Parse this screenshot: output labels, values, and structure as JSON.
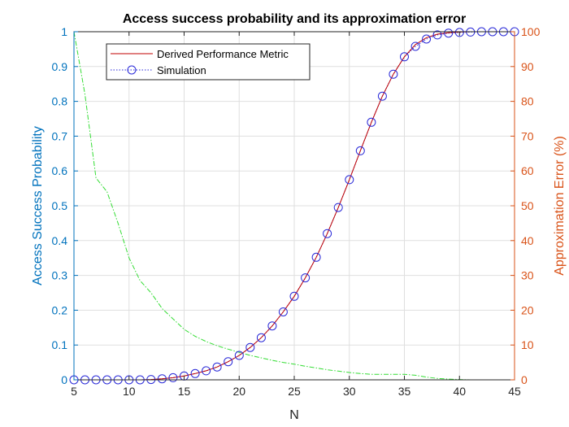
{
  "chart_data": {
    "type": "line",
    "title": "Access success probability and its approximation error",
    "xlabel": "N",
    "ylabel_left": "Access Success Probability",
    "ylabel_right": "Approximation Error (%)",
    "xlim": [
      5,
      45
    ],
    "ylim_left": [
      0,
      1
    ],
    "ylim_right": [
      0,
      100
    ],
    "x_ticks": [
      5,
      10,
      15,
      20,
      25,
      30,
      35,
      40,
      45
    ],
    "y_left_ticks": [
      0,
      0.1,
      0.2,
      0.3,
      0.4,
      0.5,
      0.6,
      0.7,
      0.8,
      0.9,
      1
    ],
    "y_right_ticks": [
      0,
      10,
      20,
      30,
      40,
      50,
      60,
      70,
      80,
      90,
      100
    ],
    "grid": true,
    "legend_position": "top-left",
    "colors": {
      "left_axis": "#0072BD",
      "right_axis": "#D95319",
      "derived": "#C00000",
      "simulation": "#2A2AD8",
      "error": "#33DD33"
    },
    "x": [
      5,
      6,
      7,
      8,
      9,
      10,
      11,
      12,
      13,
      14,
      15,
      16,
      17,
      18,
      19,
      20,
      21,
      22,
      23,
      24,
      25,
      26,
      27,
      28,
      29,
      30,
      31,
      32,
      33,
      34,
      35,
      36,
      37,
      38,
      39,
      40,
      41,
      42,
      43,
      44,
      45
    ],
    "series": [
      {
        "name": "Derived Performance Metric",
        "axis": "left",
        "style": "solid",
        "values": [
          0,
          0,
          0,
          0,
          0,
          0,
          0,
          0.001,
          0.003,
          0.006,
          0.011,
          0.018,
          0.026,
          0.037,
          0.052,
          0.07,
          0.093,
          0.121,
          0.155,
          0.195,
          0.24,
          0.293,
          0.352,
          0.42,
          0.495,
          0.575,
          0.658,
          0.74,
          0.815,
          0.878,
          0.928,
          0.963,
          0.983,
          0.993,
          0.997,
          0.999,
          1,
          1,
          1,
          1,
          1
        ]
      },
      {
        "name": "Simulation",
        "axis": "left",
        "style": "dotted-circle",
        "values": [
          0,
          0,
          0,
          0,
          0,
          0,
          0,
          0.001,
          0.003,
          0.006,
          0.011,
          0.018,
          0.026,
          0.037,
          0.052,
          0.07,
          0.093,
          0.121,
          0.155,
          0.195,
          0.24,
          0.293,
          0.352,
          0.42,
          0.495,
          0.575,
          0.658,
          0.74,
          0.815,
          0.878,
          0.928,
          0.958,
          0.979,
          0.991,
          0.996,
          0.998,
          0.999,
          1,
          1,
          1,
          1
        ]
      },
      {
        "axis": "right",
        "style": "dash-dot",
        "values": [
          100,
          82,
          58,
          54,
          45,
          35,
          28.5,
          25,
          20.5,
          17.5,
          14.5,
          12.5,
          11,
          9.8,
          8.8,
          7.9,
          7,
          6.3,
          5.6,
          5,
          4.5,
          3.9,
          3.4,
          2.9,
          2.5,
          2.1,
          1.8,
          1.6,
          1.6,
          1.6,
          1.6,
          1.3,
          0.8,
          0.4,
          0.2,
          0.1,
          0,
          0,
          0,
          0,
          0
        ]
      }
    ]
  }
}
